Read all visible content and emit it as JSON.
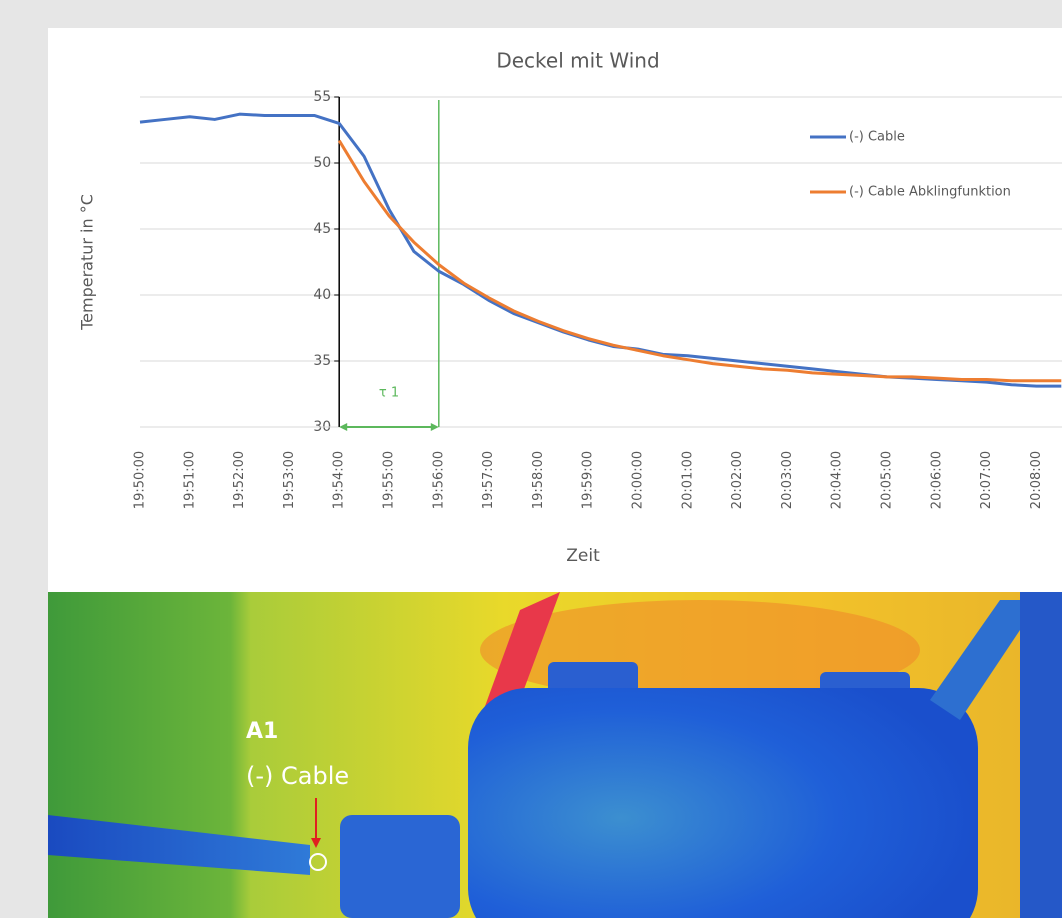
{
  "chart_data": {
    "type": "line",
    "title": "Deckel mit Wind",
    "ylabel": "Temperatur in °C",
    "xlabel": "Zeit",
    "x": [
      "19:50:00",
      "19:50:30",
      "19:51:00",
      "19:51:30",
      "19:52:00",
      "19:52:30",
      "19:53:00",
      "19:53:30",
      "19:54:00",
      "19:54:30",
      "19:55:00",
      "19:55:30",
      "19:56:00",
      "19:56:30",
      "19:57:00",
      "19:57:30",
      "19:58:00",
      "19:58:30",
      "19:59:00",
      "19:59:30",
      "20:00:00",
      "20:00:30",
      "20:01:00",
      "20:01:30",
      "20:02:00",
      "20:02:30",
      "20:03:00",
      "20:03:30",
      "20:04:00",
      "20:04:30",
      "20:05:00",
      "20:05:30",
      "20:06:00",
      "20:06:30",
      "20:07:00",
      "20:07:30",
      "20:08:00",
      "20:08:30"
    ],
    "series": [
      {
        "name": "(-) Cable",
        "color": "#4472c4",
        "values": [
          53.1,
          53.3,
          53.5,
          53.3,
          53.7,
          53.6,
          53.6,
          53.6,
          53.0,
          50.5,
          46.5,
          43.3,
          41.8,
          40.8,
          39.6,
          38.6,
          37.9,
          37.2,
          36.6,
          36.1,
          35.9,
          35.5,
          35.4,
          35.2,
          35.0,
          34.8,
          34.6,
          34.4,
          34.2,
          34.0,
          33.8,
          33.7,
          33.6,
          33.5,
          33.4,
          33.2,
          33.1,
          33.1
        ]
      },
      {
        "name": "(-) Cable Abklingfunktion",
        "color": "#ed7d31",
        "values": [
          null,
          null,
          null,
          null,
          null,
          null,
          null,
          null,
          51.7,
          48.6,
          46.0,
          44.0,
          42.3,
          40.9,
          39.8,
          38.8,
          38.0,
          37.3,
          36.7,
          36.2,
          35.8,
          35.4,
          35.1,
          34.8,
          34.6,
          34.4,
          34.3,
          34.1,
          34.0,
          33.9,
          33.8,
          33.8,
          33.7,
          33.6,
          33.6,
          33.5,
          33.5,
          33.5
        ]
      }
    ],
    "xticks": [
      "19:50:00",
      "19:51:00",
      "19:52:00",
      "19:53:00",
      "19:54:00",
      "19:55:00",
      "19:56:00",
      "19:57:00",
      "19:58:00",
      "19:59:00",
      "20:00:00",
      "20:01:00",
      "20:02:00",
      "20:03:00",
      "20:04:00",
      "20:05:00",
      "20:06:00",
      "20:07:00",
      "20:08:00"
    ],
    "ylim": [
      30,
      55
    ],
    "yticks": [
      30,
      35,
      40,
      45,
      50,
      55
    ],
    "grid": true,
    "y_axis_at": "19:54:00",
    "annotation": {
      "text": "τ 1",
      "start": "19:54:00",
      "end": "19:56:00",
      "color": "#5cb85c"
    }
  },
  "thermal_image": {
    "marker_id": "A1",
    "marker_label": "(-) Cable"
  }
}
